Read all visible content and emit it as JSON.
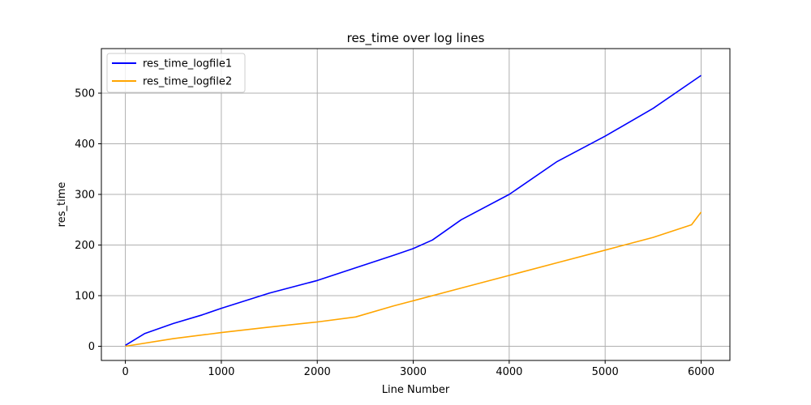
{
  "chart_data": {
    "type": "line",
    "title": "res_time over log lines",
    "xlabel": "Line Number",
    "ylabel": "res_time",
    "xlim": [
      -250,
      6300
    ],
    "ylim": [
      -28,
      588
    ],
    "xticks": [
      0,
      1000,
      2000,
      3000,
      4000,
      5000,
      6000
    ],
    "yticks": [
      0,
      100,
      200,
      300,
      400,
      500
    ],
    "grid": true,
    "legend": "upper left",
    "series": [
      {
        "name": "res_time_logfile1",
        "color": "#0000ff",
        "x": [
          0,
          200,
          500,
          800,
          1000,
          1500,
          2000,
          2400,
          2800,
          3000,
          3200,
          3500,
          4000,
          4500,
          5000,
          5500,
          6000
        ],
        "values": [
          2,
          25,
          45,
          62,
          75,
          105,
          130,
          155,
          180,
          193,
          210,
          250,
          300,
          365,
          415,
          470,
          535
        ]
      },
      {
        "name": "res_time_logfile2",
        "color": "#ffa500",
        "x": [
          0,
          500,
          1000,
          1500,
          2000,
          2400,
          2800,
          3000,
          3500,
          4000,
          4500,
          5000,
          5500,
          5900,
          6000
        ],
        "values": [
          0,
          15,
          27,
          38,
          48,
          58,
          80,
          90,
          115,
          140,
          165,
          190,
          215,
          240,
          265
        ]
      }
    ]
  }
}
